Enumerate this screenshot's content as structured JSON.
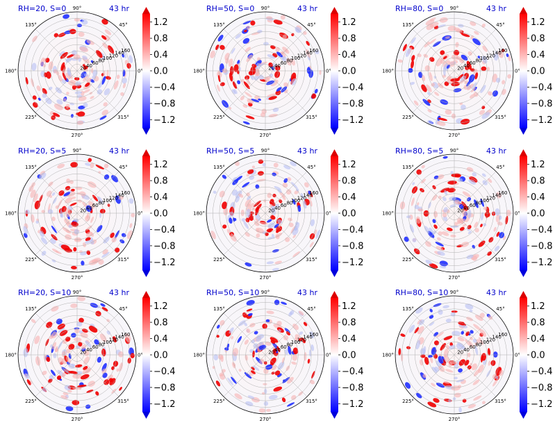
{
  "chart_data": {
    "type": "polar_field",
    "layout": "3x3",
    "time_label": "43 hr",
    "angle_ticks": [
      {
        "deg": 0,
        "label": "0°"
      },
      {
        "deg": 45,
        "label": "45°"
      },
      {
        "deg": 90,
        "label": "90°"
      },
      {
        "deg": 135,
        "label": "135°"
      },
      {
        "deg": 180,
        "label": "180°"
      },
      {
        "deg": 225,
        "label": "225°"
      },
      {
        "deg": 270,
        "label": "270°"
      },
      {
        "deg": 315,
        "label": "315°"
      }
    ],
    "radial_ticks": [
      20,
      40,
      60,
      80,
      100,
      120,
      140,
      160
    ],
    "radial_range": [
      0,
      180
    ],
    "colormap": "bwr",
    "colorbar": {
      "ticks": [
        "1.2",
        "0.8",
        "0.4",
        "0.0",
        "−0.4",
        "−0.8",
        "−1.2"
      ],
      "tick_values": [
        1.2,
        0.8,
        0.4,
        0.0,
        -0.4,
        -0.8,
        -1.2
      ],
      "range": [
        -1.4,
        1.4
      ],
      "extend": "both"
    },
    "panels": [
      {
        "title": "RH=20, S=0",
        "time": "43 hr",
        "rh": 20,
        "s": 0
      },
      {
        "title": "RH=50, S=0",
        "time": "43 hr",
        "rh": 50,
        "s": 0
      },
      {
        "title": "RH=80, S=0",
        "time": "43 hr",
        "rh": 80,
        "s": 0
      },
      {
        "title": "RH=20, S=5",
        "time": "43 hr",
        "rh": 20,
        "s": 5
      },
      {
        "title": "RH=50, S=5",
        "time": "43 hr",
        "rh": 50,
        "s": 5
      },
      {
        "title": "RH=80, S=5",
        "time": "43 hr",
        "rh": 80,
        "s": 5
      },
      {
        "title": "RH=20, S=10",
        "time": "43 hr",
        "rh": 20,
        "s": 10
      },
      {
        "title": "RH=50, S=10",
        "time": "43 hr",
        "rh": 50,
        "s": 10
      },
      {
        "title": "RH=80, S=10",
        "time": "43 hr",
        "rh": 80,
        "s": 10
      }
    ]
  }
}
